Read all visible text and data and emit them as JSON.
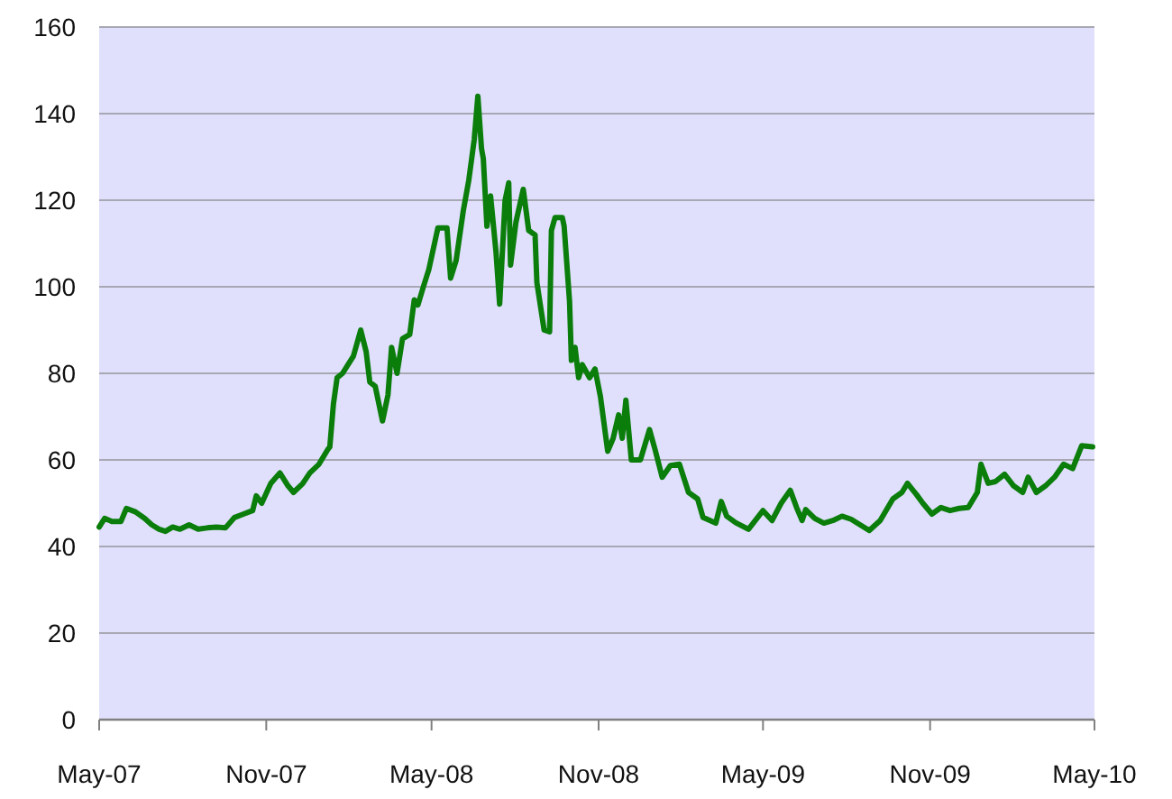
{
  "chart_data": {
    "type": "line",
    "grid": "y",
    "xlim": [
      "2007-05-01",
      "2010-05-01"
    ],
    "xticks": [
      {
        "value": "2007-05-01",
        "label": "May-07"
      },
      {
        "value": "2007-11-01",
        "label": "Nov-07"
      },
      {
        "value": "2008-05-01",
        "label": "May-08"
      },
      {
        "value": "2008-11-01",
        "label": "Nov-08"
      },
      {
        "value": "2009-05-01",
        "label": "May-09"
      },
      {
        "value": "2009-11-01",
        "label": "Nov-09"
      },
      {
        "value": "2010-05-01",
        "label": "May-10"
      }
    ],
    "ylim": [
      0,
      160
    ],
    "yticks": [
      0,
      20,
      40,
      60,
      80,
      100,
      120,
      140,
      160
    ],
    "x": [
      "2007-05-01",
      "2007-05-07",
      "2007-05-15",
      "2007-05-25",
      "2007-05-31",
      "2007-06-10",
      "2007-06-20",
      "2007-06-28",
      "2007-07-06",
      "2007-07-13",
      "2007-07-21",
      "2007-07-29",
      "2007-08-08",
      "2007-08-18",
      "2007-08-28",
      "2007-09-07",
      "2007-09-17",
      "2007-09-27",
      "2007-10-07",
      "2007-10-17",
      "2007-10-21",
      "2007-10-27",
      "2007-11-06",
      "2007-11-16",
      "2007-11-25",
      "2007-12-01",
      "2007-12-11",
      "2007-12-19",
      "2007-12-29",
      "2008-01-08",
      "2008-01-10",
      "2008-01-14",
      "2008-01-18",
      "2008-01-24",
      "2008-01-30",
      "2008-02-05",
      "2008-02-13",
      "2008-02-19",
      "2008-02-23",
      "2008-02-29",
      "2008-03-08",
      "2008-03-14",
      "2008-03-18",
      "2008-03-24",
      "2008-03-30",
      "2008-04-07",
      "2008-04-12",
      "2008-04-16",
      "2008-04-22",
      "2008-04-28",
      "2008-05-08",
      "2008-05-18",
      "2008-05-22",
      "2008-05-28",
      "2008-06-05",
      "2008-06-11",
      "2008-06-17",
      "2008-06-21",
      "2008-06-25",
      "2008-06-27",
      "2008-07-01",
      "2008-07-05",
      "2008-07-11",
      "2008-07-15",
      "2008-07-21",
      "2008-07-25",
      "2008-07-27",
      "2008-08-02",
      "2008-08-10",
      "2008-08-16",
      "2008-08-23",
      "2008-08-25",
      "2008-09-02",
      "2008-09-08",
      "2008-09-10",
      "2008-09-14",
      "2008-09-22",
      "2008-09-24",
      "2008-09-30",
      "2008-10-02",
      "2008-10-06",
      "2008-10-10",
      "2008-10-14",
      "2008-10-22",
      "2008-10-28",
      "2008-11-03",
      "2008-11-11",
      "2008-11-17",
      "2008-11-23",
      "2008-11-27",
      "2008-12-01",
      "2008-12-07",
      "2008-12-17",
      "2008-12-27",
      "2009-01-02",
      "2009-01-10",
      "2009-01-19",
      "2009-01-29",
      "2009-02-08",
      "2009-02-18",
      "2009-02-24",
      "2009-03-10",
      "2009-03-16",
      "2009-03-22",
      "2009-04-01",
      "2009-04-15",
      "2009-05-01",
      "2009-05-11",
      "2009-05-21",
      "2009-05-31",
      "2009-06-07",
      "2009-06-13",
      "2009-06-17",
      "2009-06-27",
      "2009-07-07",
      "2009-07-17",
      "2009-07-27",
      "2009-08-06",
      "2009-08-16",
      "2009-08-26",
      "2009-09-07",
      "2009-09-21",
      "2009-10-01",
      "2009-10-07",
      "2009-10-17",
      "2009-10-24",
      "2009-11-03",
      "2009-11-13",
      "2009-11-23",
      "2009-12-03",
      "2009-12-13",
      "2009-12-23",
      "2009-12-27",
      "2010-01-04",
      "2010-01-12",
      "2010-01-22",
      "2010-02-01",
      "2010-02-11",
      "2010-02-17",
      "2010-02-26",
      "2010-03-08",
      "2010-03-18",
      "2010-03-28",
      "2010-04-07",
      "2010-04-17",
      "2010-04-29"
    ],
    "series": [
      {
        "color": "#0b7d0b",
        "values": [
          44.5,
          46.5,
          45.8,
          45.8,
          48.8,
          48,
          46.5,
          45,
          44,
          43.5,
          44.5,
          44,
          45,
          44,
          44.3,
          44.5,
          44.3,
          46.7,
          47.5,
          48.3,
          51.7,
          50,
          54.6,
          57,
          54,
          52.5,
          54.5,
          57,
          59,
          62.5,
          63,
          73,
          79,
          80,
          82,
          84,
          90,
          85,
          78,
          77,
          69,
          75,
          86,
          80,
          88,
          89,
          97,
          95.8,
          100,
          104,
          113.6,
          113.6,
          102,
          106,
          117.6,
          124.6,
          134,
          144,
          132,
          129.6,
          114,
          121,
          108,
          96,
          120,
          124,
          105,
          115,
          122.5,
          113,
          112,
          101,
          90,
          89.6,
          113,
          116,
          116,
          114,
          96.5,
          83,
          86,
          79,
          82,
          79,
          81,
          74.6,
          62,
          65,
          70.4,
          65,
          73.8,
          60,
          60,
          67,
          62.5,
          56,
          58.7,
          59,
          52.5,
          51,
          46.7,
          45.4,
          50.4,
          47,
          45.5,
          44,
          48.3,
          46,
          50,
          53,
          49,
          46,
          48.5,
          46.5,
          45.4,
          46,
          47,
          46.3,
          45,
          43.7,
          46,
          51,
          52.5,
          54.6,
          52,
          50,
          47.5,
          49,
          48.3,
          48.8,
          49,
          52.5,
          59,
          54.6,
          55,
          56.7,
          54,
          52.5,
          56,
          52.5,
          54,
          56,
          59,
          58,
          63.3,
          63
        ]
      }
    ]
  }
}
